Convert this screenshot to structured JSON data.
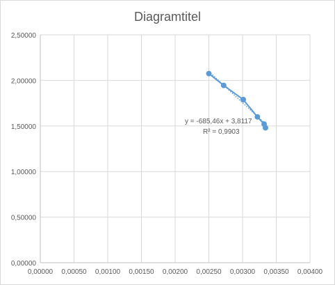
{
  "chart_data": {
    "type": "scatter",
    "title": "Diagramtitel",
    "xlabel": "",
    "ylabel": "",
    "xlim": [
      0,
      0.004
    ],
    "ylim": [
      0,
      2.5
    ],
    "x_ticks": [
      "0,00000",
      "0,00050",
      "0,00100",
      "0,00150",
      "0,00200",
      "0,00250",
      "0,00300",
      "0,00350",
      "0,00400"
    ],
    "y_ticks": [
      "0,00000",
      "0,50000",
      "1,00000",
      "1,50000",
      "2,00000",
      "2,50000"
    ],
    "grid": "vertical and horizontal major gridlines",
    "series": [
      {
        "color": "#5b9bd5",
        "marker": "circle",
        "line": "solid",
        "points": [
          {
            "x": 0.0025,
            "y": 2.075
          },
          {
            "x": 0.00272,
            "y": 1.945
          },
          {
            "x": 0.00301,
            "y": 1.79
          },
          {
            "x": 0.00322,
            "y": 1.6
          },
          {
            "x": 0.00332,
            "y": 1.52
          },
          {
            "x": 0.00334,
            "y": 1.48
          }
        ]
      }
    ],
    "trendline": {
      "type": "linear",
      "style": "dotted",
      "slope": -685.46,
      "intercept": 3.8117,
      "equation_label": "y = -685,46x + 3,8117",
      "r2_label": "R² = 0,9903"
    }
  }
}
